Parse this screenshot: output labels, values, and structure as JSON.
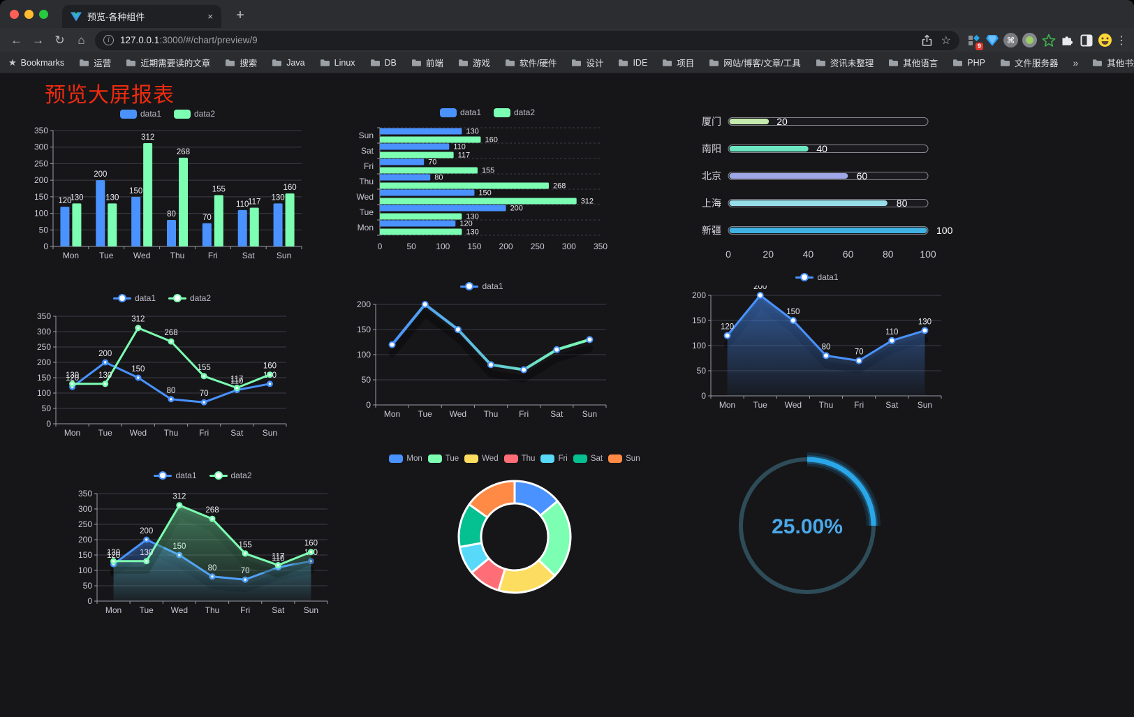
{
  "browser": {
    "traffic_lights": {
      "close": "#ff5f57",
      "minimize": "#febc2e",
      "zoom": "#28c840"
    },
    "tab": {
      "title": "预览-各种组件",
      "close_glyph": "×"
    },
    "new_tab_glyph": "+",
    "nav": {
      "back_glyph": "←",
      "forward_glyph": "→",
      "reload_glyph": "↻",
      "home_glyph": "⌂"
    },
    "urlbar": {
      "info_glyph": "i",
      "host": "127.0.0.1",
      "path": ":3000/#/chart/preview/9",
      "star_glyph": "☆"
    },
    "extensions": {
      "badge": "9",
      "command_glyph": "⌘",
      "menu_glyph": "⋮"
    },
    "bookmarks": {
      "items": [
        {
          "icon": "star",
          "label": "Bookmarks"
        },
        {
          "icon": "folder",
          "label": "运营"
        },
        {
          "icon": "folder",
          "label": "近期需要读的文章"
        },
        {
          "icon": "folder",
          "label": "搜索"
        },
        {
          "icon": "folder",
          "label": "Java"
        },
        {
          "icon": "folder",
          "label": "Linux"
        },
        {
          "icon": "folder",
          "label": "DB"
        },
        {
          "icon": "folder",
          "label": "前端"
        },
        {
          "icon": "folder",
          "label": "游戏"
        },
        {
          "icon": "folder",
          "label": "软件/硬件"
        },
        {
          "icon": "folder",
          "label": "设计"
        },
        {
          "icon": "folder",
          "label": "IDE"
        },
        {
          "icon": "folder",
          "label": "项目"
        },
        {
          "icon": "folder",
          "label": "网站/博客/文章/工具"
        },
        {
          "icon": "folder",
          "label": "资讯未整理"
        },
        {
          "icon": "folder",
          "label": "其他语言"
        },
        {
          "icon": "folder",
          "label": "PHP"
        },
        {
          "icon": "folder",
          "label": "文件服务器"
        }
      ],
      "overflow_glyph": "»",
      "other_label": "其他书签"
    }
  },
  "page": {
    "title": "预览大屏报表"
  },
  "chart_data": [
    {
      "id": "c1",
      "type": "bar",
      "legend_shape": "rect",
      "categories": [
        "Mon",
        "Tue",
        "Wed",
        "Thu",
        "Fri",
        "Sat",
        "Sun"
      ],
      "series": [
        {
          "name": "data1",
          "color": "#4992ff",
          "values": [
            120,
            200,
            150,
            80,
            70,
            110,
            130
          ]
        },
        {
          "name": "data2",
          "color": "#7cffb2",
          "values": [
            130,
            130,
            312,
            268,
            155,
            117,
            160
          ]
        }
      ],
      "ylim": [
        0,
        350
      ],
      "ytick": 50,
      "value_labels": true
    },
    {
      "id": "c2",
      "type": "bar-horizontal",
      "legend_shape": "rect",
      "categories": [
        "Mon",
        "Tue",
        "Wed",
        "Thu",
        "Fri",
        "Sat",
        "Sun"
      ],
      "series": [
        {
          "name": "data1",
          "color": "#4992ff",
          "values": [
            120,
            200,
            150,
            80,
            70,
            110,
            130
          ]
        },
        {
          "name": "data2",
          "color": "#7cffb2",
          "values": [
            130,
            130,
            312,
            268,
            155,
            117,
            160
          ]
        }
      ],
      "xlim": [
        0,
        350
      ],
      "xtick": 50,
      "value_labels": true
    },
    {
      "id": "c3",
      "type": "progress-bars",
      "rows": [
        {
          "label": "厦门",
          "value": 20,
          "color": "#c4ebad"
        },
        {
          "label": "南阳",
          "value": 40,
          "color": "#6be6c1"
        },
        {
          "label": "北京",
          "value": 60,
          "color": "#a0a7e6"
        },
        {
          "label": "上海",
          "value": 80,
          "color": "#96dee8"
        },
        {
          "label": "新疆",
          "value": 100,
          "color": "#3fb1e3"
        }
      ],
      "xlim": [
        0,
        100
      ],
      "xticks": [
        0,
        20,
        40,
        60,
        80,
        100
      ]
    },
    {
      "id": "c4",
      "type": "line",
      "legend_shape": "circle",
      "categories": [
        "Mon",
        "Tue",
        "Wed",
        "Thu",
        "Fri",
        "Sat",
        "Sun"
      ],
      "series": [
        {
          "name": "data1",
          "color": "#4992ff",
          "values": [
            120,
            200,
            150,
            80,
            70,
            110,
            130
          ]
        },
        {
          "name": "data2",
          "color": "#7cffb2",
          "values": [
            130,
            130,
            312,
            268,
            155,
            117,
            160
          ]
        }
      ],
      "ylim": [
        0,
        350
      ],
      "ytick": 50,
      "markers": "filled",
      "labels": true
    },
    {
      "id": "c5",
      "type": "line",
      "legend_shape": "circle",
      "categories": [
        "Mon",
        "Tue",
        "Wed",
        "Thu",
        "Fri",
        "Sat",
        "Sun"
      ],
      "series": [
        {
          "name": "data1",
          "color": "#4992ff",
          "values": [
            120,
            200,
            150,
            80,
            70,
            110,
            130
          ]
        }
      ],
      "ylim": [
        0,
        200
      ],
      "ytick": 50,
      "markers": "hollow",
      "labels": false,
      "shadow": true,
      "line_gradient": [
        "#4992ff",
        "#7cffb2"
      ],
      "marker_stroke": "#4992ff",
      "line_width": 4
    },
    {
      "id": "c6",
      "type": "line",
      "legend_shape": "circle",
      "categories": [
        "Mon",
        "Tue",
        "Wed",
        "Thu",
        "Fri",
        "Sat",
        "Sun"
      ],
      "series": [
        {
          "name": "data1",
          "color": "#4992ff",
          "values": [
            120,
            200,
            150,
            80,
            70,
            110,
            130
          ]
        }
      ],
      "ylim": [
        0,
        200
      ],
      "ytick": 50,
      "markers": "hollow",
      "labels": true,
      "area": true,
      "area_opacity": [
        0.55,
        0.04
      ],
      "shadow": true
    },
    {
      "id": "c7",
      "type": "line",
      "legend_shape": "circle",
      "categories": [
        "Mon",
        "Tue",
        "Wed",
        "Thu",
        "Fri",
        "Sat",
        "Sun"
      ],
      "series": [
        {
          "name": "data1",
          "color": "#4992ff",
          "values": [
            120,
            200,
            150,
            80,
            70,
            110,
            130
          ]
        },
        {
          "name": "data2",
          "color": "#7cffb2",
          "values": [
            130,
            130,
            312,
            268,
            155,
            117,
            160
          ]
        }
      ],
      "ylim": [
        0,
        350
      ],
      "ytick": 50,
      "markers": "filled",
      "labels": true,
      "area": true,
      "area_opacity": [
        0.42,
        0.03
      ],
      "shadow": true
    },
    {
      "id": "c8",
      "type": "pie-donut",
      "legend_shape": "rect",
      "slices": [
        {
          "label": "Mon",
          "value": 120,
          "color": "#4992ff"
        },
        {
          "label": "Tue",
          "value": 200,
          "color": "#7cffb2"
        },
        {
          "label": "Wed",
          "value": 150,
          "color": "#fddd60"
        },
        {
          "label": "Thu",
          "value": 80,
          "color": "#ff6e76"
        },
        {
          "label": "Fri",
          "value": 70,
          "color": "#58d9f9"
        },
        {
          "label": "Sat",
          "value": 110,
          "color": "#05c091"
        },
        {
          "label": "Sun",
          "value": 130,
          "color": "#ff8a45"
        }
      ],
      "inner_radius": 48,
      "outer_radius": 80
    },
    {
      "id": "c9",
      "type": "gauge",
      "percent": 25,
      "value_label": "25.00%",
      "color": "#2aa7e8",
      "track_color": "#2e4b58",
      "text_color": "#4aa8e8"
    }
  ]
}
